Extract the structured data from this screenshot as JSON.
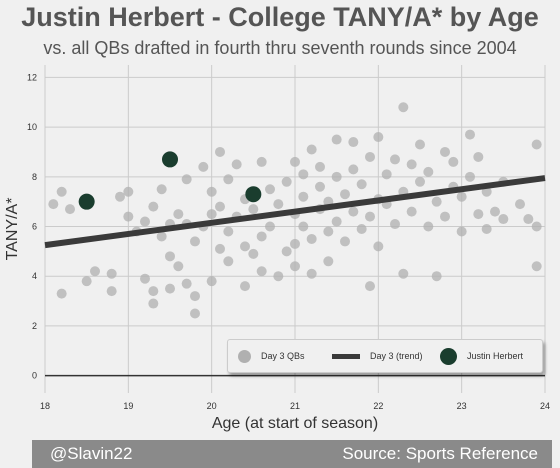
{
  "header": {
    "title": "Justin Herbert - College TANY/A* by Age",
    "subtitle": "vs. all QBs drafted in fourth thru seventh rounds since 2004"
  },
  "footer": {
    "left": "@Slavin22",
    "right": "Source: Sports Reference"
  },
  "legend": {
    "gray": "Day 3 QBs",
    "line": "Day 3 (trend)",
    "green": "Justin Herbert"
  },
  "colors": {
    "background": "#f0f0f0",
    "day3_points": "#b0b0b0",
    "trend": "#3a3a3a",
    "herbert": "#1a3d2e",
    "footer": "#8a8a8a"
  },
  "chart_data": {
    "type": "scatter",
    "xlabel": "Age (at start of season)",
    "ylabel": "TANY/A*",
    "xlim": [
      18,
      24
    ],
    "ylim": [
      -0.7,
      12.5
    ],
    "xticks": [
      "18",
      "19",
      "20",
      "21",
      "22",
      "23",
      "24"
    ],
    "yticks": [
      "0",
      "2",
      "4",
      "6",
      "8",
      "10",
      "12"
    ],
    "grid": true,
    "legend_position": "lower-right",
    "series": [
      {
        "name": "Day 3 QBs",
        "type": "scatter",
        "points": [
          [
            18.1,
            6.9
          ],
          [
            18.2,
            7.4
          ],
          [
            18.2,
            3.3
          ],
          [
            18.3,
            6.7
          ],
          [
            18.5,
            3.8
          ],
          [
            18.6,
            4.2
          ],
          [
            18.8,
            4.1
          ],
          [
            18.8,
            3.4
          ],
          [
            18.9,
            7.2
          ],
          [
            19.0,
            7.4
          ],
          [
            19.0,
            6.4
          ],
          [
            19.1,
            5.8
          ],
          [
            19.2,
            6.2
          ],
          [
            19.2,
            3.9
          ],
          [
            19.3,
            2.9
          ],
          [
            19.3,
            3.4
          ],
          [
            19.3,
            6.8
          ],
          [
            19.4,
            7.5
          ],
          [
            19.4,
            5.6
          ],
          [
            19.5,
            3.5
          ],
          [
            19.5,
            4.8
          ],
          [
            19.5,
            6.1
          ],
          [
            19.6,
            4.4
          ],
          [
            19.6,
            6.5
          ],
          [
            19.7,
            3.7
          ],
          [
            19.7,
            6.1
          ],
          [
            19.7,
            7.9
          ],
          [
            19.8,
            3.2
          ],
          [
            19.8,
            2.5
          ],
          [
            19.8,
            5.4
          ],
          [
            19.9,
            8.4
          ],
          [
            19.9,
            6.0
          ],
          [
            20.0,
            7.4
          ],
          [
            20.0,
            6.5
          ],
          [
            20.0,
            3.8
          ],
          [
            20.1,
            5.1
          ],
          [
            20.1,
            6.8
          ],
          [
            20.1,
            9.0
          ],
          [
            20.2,
            7.9
          ],
          [
            20.2,
            5.8
          ],
          [
            20.2,
            4.6
          ],
          [
            20.3,
            8.5
          ],
          [
            20.3,
            6.4
          ],
          [
            20.4,
            5.2
          ],
          [
            20.4,
            3.6
          ],
          [
            20.4,
            7.1
          ],
          [
            20.5,
            6.7
          ],
          [
            20.5,
            4.9
          ],
          [
            20.6,
            8.6
          ],
          [
            20.6,
            4.2
          ],
          [
            20.6,
            5.6
          ],
          [
            20.7,
            7.5
          ],
          [
            20.7,
            6.0
          ],
          [
            20.8,
            4.0
          ],
          [
            20.8,
            6.9
          ],
          [
            20.9,
            5.0
          ],
          [
            20.9,
            7.8
          ],
          [
            21.0,
            8.6
          ],
          [
            21.0,
            6.5
          ],
          [
            21.0,
            5.3
          ],
          [
            21.0,
            4.4
          ],
          [
            21.1,
            7.2
          ],
          [
            21.1,
            8.1
          ],
          [
            21.1,
            6.0
          ],
          [
            21.2,
            9.1
          ],
          [
            21.2,
            5.5
          ],
          [
            21.2,
            4.1
          ],
          [
            21.3,
            7.6
          ],
          [
            21.3,
            6.7
          ],
          [
            21.3,
            8.4
          ],
          [
            21.4,
            5.8
          ],
          [
            21.4,
            7.0
          ],
          [
            21.4,
            4.6
          ],
          [
            21.5,
            9.5
          ],
          [
            21.5,
            6.2
          ],
          [
            21.5,
            8.0
          ],
          [
            21.6,
            7.3
          ],
          [
            21.6,
            5.4
          ],
          [
            21.7,
            9.4
          ],
          [
            21.7,
            6.6
          ],
          [
            21.7,
            8.3
          ],
          [
            21.8,
            5.9
          ],
          [
            21.8,
            7.7
          ],
          [
            21.9,
            3.6
          ],
          [
            21.9,
            8.8
          ],
          [
            21.9,
            6.4
          ],
          [
            22.0,
            9.6
          ],
          [
            22.0,
            7.1
          ],
          [
            22.0,
            5.2
          ],
          [
            22.1,
            8.1
          ],
          [
            22.1,
            6.9
          ],
          [
            22.2,
            8.7
          ],
          [
            22.2,
            6.1
          ],
          [
            22.3,
            10.8
          ],
          [
            22.3,
            7.4
          ],
          [
            22.3,
            4.1
          ],
          [
            22.4,
            8.5
          ],
          [
            22.4,
            6.6
          ],
          [
            22.5,
            9.3
          ],
          [
            22.5,
            7.8
          ],
          [
            22.6,
            6.0
          ],
          [
            22.6,
            8.2
          ],
          [
            22.7,
            7.0
          ],
          [
            22.7,
            4.0
          ],
          [
            22.8,
            9.0
          ],
          [
            22.8,
            6.4
          ],
          [
            22.9,
            7.6
          ],
          [
            22.9,
            8.6
          ],
          [
            23.0,
            5.8
          ],
          [
            23.0,
            7.2
          ],
          [
            23.1,
            9.7
          ],
          [
            23.1,
            8.0
          ],
          [
            23.2,
            6.5
          ],
          [
            23.2,
            8.8
          ],
          [
            23.3,
            7.4
          ],
          [
            23.3,
            5.9
          ],
          [
            23.4,
            6.6
          ],
          [
            23.5,
            7.8
          ],
          [
            23.5,
            6.3
          ],
          [
            23.7,
            6.9
          ],
          [
            23.8,
            6.3
          ],
          [
            23.9,
            9.3
          ],
          [
            23.9,
            4.4
          ],
          [
            23.9,
            6.0
          ]
        ]
      },
      {
        "name": "Day 3 (trend)",
        "type": "line",
        "points": [
          [
            18.0,
            5.25
          ],
          [
            24.0,
            7.95
          ]
        ]
      },
      {
        "name": "Justin Herbert",
        "type": "scatter",
        "points": [
          [
            18.5,
            7.0
          ],
          [
            19.5,
            8.7
          ],
          [
            20.5,
            7.3
          ]
        ]
      }
    ]
  }
}
